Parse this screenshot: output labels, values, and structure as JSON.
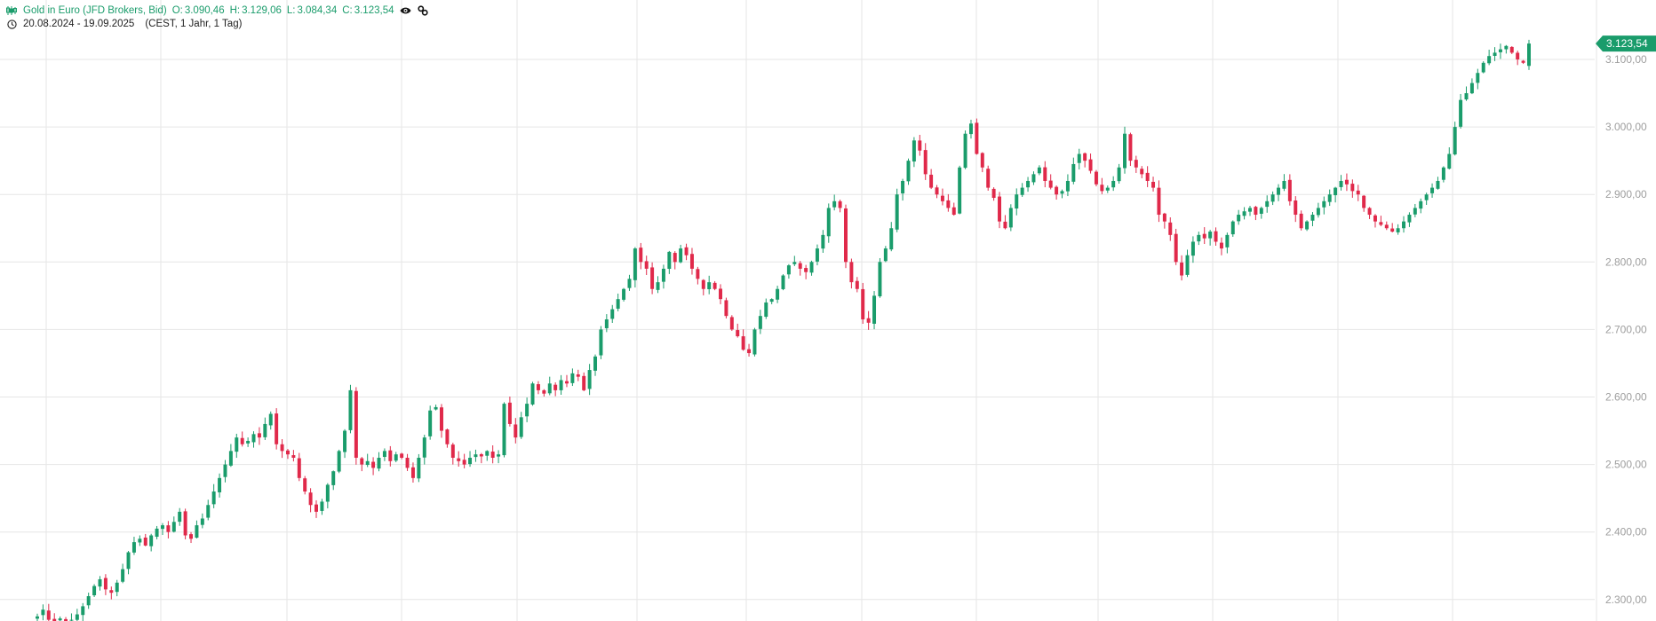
{
  "legend": {
    "instrument": "Gold in Euro (JFD Brokers, Bid)",
    "open_label": "O:",
    "open": "3.090,46",
    "high_label": "H:",
    "high": "3.129,06",
    "low_label": "L:",
    "low": "3.084,34",
    "close_label": "C:",
    "close": "3.123,54",
    "icons": [
      "candlestick-icon",
      "eye-icon",
      "link-icon"
    ]
  },
  "range": {
    "dates": "20.08.2024 - 19.09.2025",
    "meta": "(CEST, 1 Jahr, 1 Tag)",
    "icon": "clock-icon"
  },
  "colors": {
    "up": "#1a9c6b",
    "down": "#e0294a",
    "grid": "#e6e6e6",
    "axis_text": "#9e9e9e"
  },
  "chart_data": {
    "type": "candlestick",
    "title": "",
    "xlabel": "",
    "ylabel": "",
    "ylim": [
      2270,
      3150
    ],
    "y_ticks": [
      {
        "value": 3100,
        "label": "3.100,00"
      },
      {
        "value": 3000,
        "label": "3.000,00"
      },
      {
        "value": 2900,
        "label": "2.900,00"
      },
      {
        "value": 2800,
        "label": "2.800,00"
      },
      {
        "value": 2700,
        "label": "2.700,00"
      },
      {
        "value": 2600,
        "label": "2.600,00"
      },
      {
        "value": 2500,
        "label": "2.500,00"
      },
      {
        "value": 2400,
        "label": "2.400,00"
      },
      {
        "value": 2300,
        "label": "2.300,00"
      }
    ],
    "last_price": {
      "value": 3123.54,
      "label": "3.123,54"
    },
    "grid": true,
    "close_path": [
      2275,
      2285,
      2270,
      2268,
      2272,
      2268,
      2270,
      2278,
      2290,
      2305,
      2320,
      2330,
      2315,
      2310,
      2325,
      2345,
      2370,
      2385,
      2390,
      2380,
      2395,
      2405,
      2410,
      2400,
      2415,
      2430,
      2395,
      2390,
      2410,
      2420,
      2440,
      2460,
      2480,
      2500,
      2520,
      2540,
      2530,
      2535,
      2545,
      2540,
      2560,
      2575,
      2530,
      2520,
      2515,
      2510,
      2480,
      2460,
      2440,
      2430,
      2445,
      2470,
      2490,
      2520,
      2550,
      2610,
      2510,
      2500,
      2505,
      2495,
      2510,
      2520,
      2505,
      2515,
      2510,
      2495,
      2480,
      2510,
      2540,
      2580,
      2585,
      2550,
      2530,
      2510,
      2505,
      2500,
      2510,
      2515,
      2512,
      2520,
      2510,
      2515,
      2590,
      2560,
      2540,
      2570,
      2590,
      2620,
      2610,
      2605,
      2620,
      2610,
      2625,
      2620,
      2635,
      2630,
      2610,
      2640,
      2660,
      2700,
      2715,
      2730,
      2745,
      2760,
      2775,
      2820,
      2800,
      2790,
      2760,
      2770,
      2790,
      2815,
      2800,
      2820,
      2810,
      2790,
      2775,
      2760,
      2770,
      2760,
      2745,
      2720,
      2700,
      2690,
      2670,
      2665,
      2700,
      2720,
      2740,
      2745,
      2760,
      2780,
      2795,
      2800,
      2790,
      2785,
      2800,
      2820,
      2840,
      2880,
      2890,
      2880,
      2800,
      2770,
      2760,
      2715,
      2710,
      2750,
      2800,
      2820,
      2850,
      2900,
      2920,
      2950,
      2980,
      2965,
      2930,
      2910,
      2900,
      2890,
      2880,
      2870,
      2940,
      2990,
      3005,
      2960,
      2940,
      2910,
      2895,
      2860,
      2850,
      2880,
      2900,
      2910,
      2920,
      2930,
      2940,
      2920,
      2910,
      2900,
      2905,
      2920,
      2945,
      2960,
      2950,
      2935,
      2915,
      2905,
      2910,
      2920,
      2940,
      2990,
      2950,
      2940,
      2930,
      2920,
      2910,
      2870,
      2860,
      2840,
      2800,
      2780,
      2810,
      2830,
      2840,
      2835,
      2845,
      2830,
      2820,
      2840,
      2860,
      2870,
      2875,
      2880,
      2870,
      2880,
      2890,
      2900,
      2910,
      2920,
      2890,
      2870,
      2850,
      2860,
      2870,
      2880,
      2890,
      2900,
      2910,
      2920,
      2915,
      2905,
      2900,
      2880,
      2870,
      2860,
      2855,
      2850,
      2845,
      2850,
      2860,
      2870,
      2880,
      2890,
      2900,
      2910,
      2920,
      2940,
      2960,
      3000,
      3040,
      3050,
      3065,
      3080,
      3095,
      3105,
      3110,
      3115,
      3120,
      3110,
      3100,
      3095,
      3123.54
    ]
  }
}
